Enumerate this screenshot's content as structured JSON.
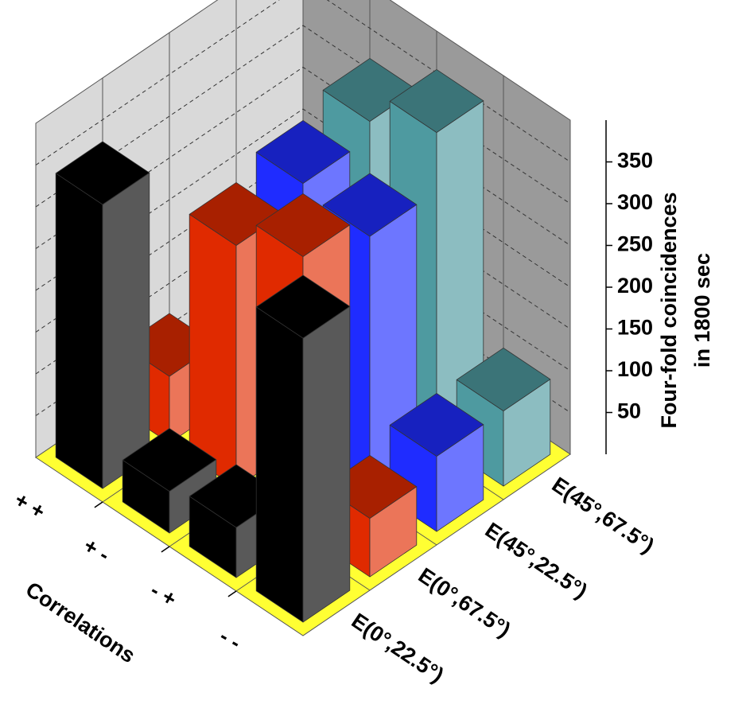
{
  "chart_data": {
    "type": "bar3d",
    "categories": [
      "+ +",
      "+ -",
      "- +",
      "- -"
    ],
    "series": [
      {
        "name": "E(0°,22.5°)",
        "color": "#000000",
        "values": [
          340,
          50,
          60,
          340
        ]
      },
      {
        "name": "E(0°,67.5°)",
        "color": "#e02a00",
        "values": [
          80,
          290,
          330,
          70
        ]
      },
      {
        "name": "E(45°,22.5°)",
        "color": "#1f2cff",
        "values": [
          40,
          310,
          300,
          90
        ]
      },
      {
        "name": "E(45°,67.5°)",
        "color": "#4e9aa0",
        "values": [
          40,
          330,
          370,
          90
        ]
      }
    ],
    "ylim": [
      0,
      400
    ],
    "yticks": [
      50,
      100,
      150,
      200,
      250,
      300,
      350
    ],
    "x_label": "Correlations",
    "y_label": [
      "Four-fold coincidences",
      "in 1800 sec"
    ],
    "grid": true
  }
}
